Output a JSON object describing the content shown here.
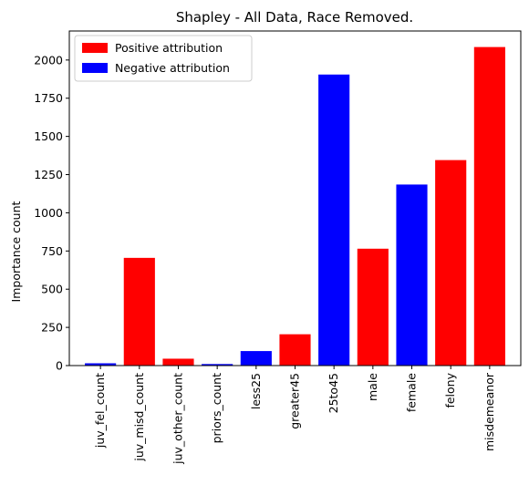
{
  "chart_data": {
    "type": "bar",
    "title": "Shapley - All Data, Race Removed.",
    "xlabel": "",
    "ylabel": "Importance count",
    "ylim": [
      0,
      2190
    ],
    "yticks": [
      0,
      250,
      500,
      750,
      1000,
      1250,
      1500,
      1750,
      2000
    ],
    "categories": [
      "juv_fel_count",
      "juv_misd_count",
      "juv_other_count",
      "priors_count",
      "less25",
      "greater45",
      "25to45",
      "male",
      "female",
      "felony",
      "misdemeanor"
    ],
    "values": [
      15,
      705,
      45,
      10,
      95,
      205,
      1905,
      765,
      1185,
      1345,
      2085
    ],
    "attribution": [
      "negative",
      "positive",
      "positive",
      "negative",
      "negative",
      "positive",
      "negative",
      "positive",
      "negative",
      "positive",
      "positive"
    ],
    "legend": {
      "position": "upper-left",
      "entries": [
        {
          "key": "positive",
          "label": "Positive attribution",
          "color": "#ff0000"
        },
        {
          "key": "negative",
          "label": "Negative attribution",
          "color": "#0000ff"
        }
      ]
    },
    "grid": false
  }
}
